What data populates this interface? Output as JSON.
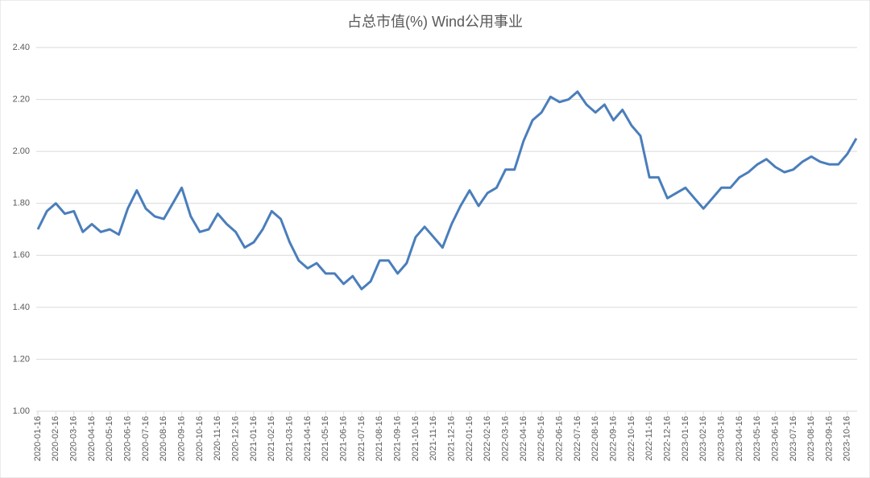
{
  "chart_data": {
    "type": "line",
    "title": "占总市值(%) Wind公用事业",
    "categories": [
      "2020-01-16",
      null,
      "2020-02-16",
      null,
      "2020-03-16",
      null,
      "2020-04-16",
      null,
      "2020-05-16",
      null,
      "2020-06-16",
      null,
      "2020-07-16",
      null,
      "2020-08-16",
      null,
      "2020-09-16",
      null,
      "2020-10-16",
      null,
      "2020-11-16",
      null,
      "2020-12-16",
      null,
      "2021-01-16",
      null,
      "2021-02-16",
      null,
      "2021-03-16",
      null,
      "2021-04-16",
      null,
      "2021-05-16",
      null,
      "2021-06-16",
      null,
      "2021-07-16",
      null,
      "2021-08-16",
      null,
      "2021-09-16",
      null,
      "2021-10-16",
      null,
      "2021-11-16",
      null,
      "2021-12-16",
      null,
      "2022-01-16",
      null,
      "2022-02-16",
      null,
      "2022-03-16",
      null,
      "2022-04-16",
      null,
      "2022-05-16",
      null,
      "2022-06-16",
      null,
      "2022-07-16",
      null,
      "2022-08-16",
      null,
      "2022-09-16",
      null,
      "2022-10-16",
      null,
      "2022-11-16",
      null,
      "2022-12-16",
      null,
      "2023-01-16",
      null,
      "2023-02-16",
      null,
      "2023-03-16",
      null,
      "2023-04-16",
      null,
      "2023-05-16",
      null,
      "2023-06-16",
      null,
      "2023-07-16",
      null,
      "2023-08-16",
      null,
      "2023-09-16",
      null,
      "2023-10-16",
      null
    ],
    "series": [
      {
        "name": "占总市值(%) Wind公用事业",
        "color": "#4a7ebb",
        "values": [
          1.7,
          1.77,
          1.8,
          1.76,
          1.77,
          1.69,
          1.72,
          1.69,
          1.7,
          1.68,
          1.78,
          1.85,
          1.78,
          1.75,
          1.74,
          1.8,
          1.86,
          1.75,
          1.69,
          1.7,
          1.76,
          1.72,
          1.69,
          1.63,
          1.65,
          1.7,
          1.77,
          1.74,
          1.65,
          1.58,
          1.55,
          1.57,
          1.53,
          1.53,
          1.49,
          1.52,
          1.47,
          1.5,
          1.58,
          1.58,
          1.53,
          1.57,
          1.67,
          1.71,
          1.67,
          1.63,
          1.72,
          1.79,
          1.85,
          1.79,
          1.84,
          1.86,
          1.93,
          1.93,
          2.04,
          2.12,
          2.15,
          2.21,
          2.19,
          2.2,
          2.23,
          2.18,
          2.15,
          2.18,
          2.12,
          2.16,
          2.1,
          2.06,
          1.9,
          1.9,
          1.82,
          1.84,
          1.86,
          1.82,
          1.78,
          1.82,
          1.86,
          1.86,
          1.9,
          1.92,
          1.95,
          1.97,
          1.94,
          1.92,
          1.93,
          1.96,
          1.98,
          1.96,
          1.95,
          1.95,
          1.99,
          2.05
        ]
      }
    ],
    "ylim": [
      1.0,
      2.4
    ],
    "yticks": [
      {
        "value": 1.0,
        "label": "1.00"
      },
      {
        "value": 1.2,
        "label": "1.20"
      },
      {
        "value": 1.4,
        "label": "1.40"
      },
      {
        "value": 1.6,
        "label": "1.60"
      },
      {
        "value": 1.8,
        "label": "1.80"
      },
      {
        "value": 2.0,
        "label": "2.00"
      },
      {
        "value": 2.2,
        "label": "2.20"
      },
      {
        "value": 2.4,
        "label": "2.40"
      }
    ],
    "grid": true
  }
}
